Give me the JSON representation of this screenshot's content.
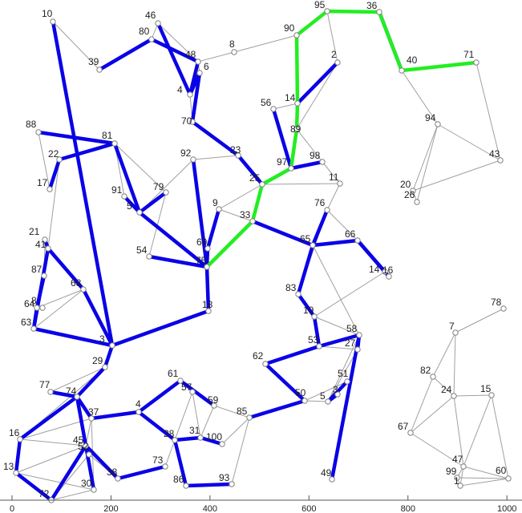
{
  "x_axis": {
    "ticks": [
      0,
      200,
      400,
      600,
      800,
      1000
    ]
  },
  "colors": {
    "thin_edge": "#a0a0a0",
    "blue_path": "#0a00e6",
    "green_path": "#22ee22",
    "node": "#808080"
  },
  "nodes": [
    {
      "id": 10,
      "label": "10"
    },
    {
      "id": 39,
      "label": "39"
    },
    {
      "id": 46,
      "label": "46"
    },
    {
      "id": 80,
      "label": "80"
    },
    {
      "id": 48,
      "label": "48"
    },
    {
      "id": 6,
      "label": "6"
    },
    {
      "id": 4,
      "label": "4"
    },
    {
      "id": 8,
      "label": "8"
    },
    {
      "id": 70,
      "label": "70"
    },
    {
      "id": 95,
      "label": "95"
    },
    {
      "id": 36,
      "label": "36"
    },
    {
      "id": 90,
      "label": "90"
    },
    {
      "id": 2,
      "label": "2"
    },
    {
      "id": 40,
      "label": "40"
    },
    {
      "id": 71,
      "label": "71"
    },
    {
      "id": 14,
      "label": "14"
    },
    {
      "id": 56,
      "label": "56"
    },
    {
      "id": 89,
      "label": "89"
    },
    {
      "id": 94,
      "label": "94"
    },
    {
      "id": 43,
      "label": "43"
    },
    {
      "id": 88,
      "label": "88"
    },
    {
      "id": 81,
      "label": "81"
    },
    {
      "id": 22,
      "label": "22"
    },
    {
      "id": 92,
      "label": "92"
    },
    {
      "id": 23,
      "label": "23"
    },
    {
      "id": 98,
      "label": "98"
    },
    {
      "id": 97,
      "label": "97"
    },
    {
      "id": 11,
      "label": "11"
    },
    {
      "id": 20,
      "label": "20"
    },
    {
      "id": 26,
      "label": "26"
    },
    {
      "id": 17,
      "label": "17"
    },
    {
      "id": 91,
      "label": "91"
    },
    {
      "id": 79,
      "label": "79"
    },
    {
      "id": 5,
      "label": "5"
    },
    {
      "id": 25,
      "label": "25"
    },
    {
      "id": 9,
      "label": "9"
    },
    {
      "id": 33,
      "label": "33"
    },
    {
      "id": 76,
      "label": "76"
    },
    {
      "id": 21,
      "label": "21"
    },
    {
      "id": 41,
      "label": "41"
    },
    {
      "id": 66,
      "label": "66"
    },
    {
      "id": 65,
      "label": "65"
    },
    {
      "id": 69,
      "label": "69"
    },
    {
      "id": 54,
      "label": "54"
    },
    {
      "id": 75,
      "label": "75"
    },
    {
      "id": 87,
      "label": "87"
    },
    {
      "id": 14.5,
      "label": "14"
    },
    {
      "id": 16.5,
      "label": "16"
    },
    {
      "id": 68,
      "label": "68"
    },
    {
      "id": 83,
      "label": "83"
    },
    {
      "id": 78,
      "label": "78"
    },
    {
      "id": 64,
      "label": "64"
    },
    {
      "id": 85.5,
      "label": "8"
    },
    {
      "id": 18,
      "label": "18"
    },
    {
      "id": 19,
      "label": "19"
    },
    {
      "id": 63,
      "label": "63"
    },
    {
      "id": 3,
      "label": "3"
    },
    {
      "id": 7,
      "label": "7"
    },
    {
      "id": 58,
      "label": "58"
    },
    {
      "id": 53,
      "label": "53"
    },
    {
      "id": 27,
      "label": "27"
    },
    {
      "id": 29,
      "label": "29"
    },
    {
      "id": 62,
      "label": "62"
    },
    {
      "id": 82,
      "label": "82"
    },
    {
      "id": 61,
      "label": "61"
    },
    {
      "id": 51,
      "label": "51"
    },
    {
      "id": 77,
      "label": "77"
    },
    {
      "id": 74,
      "label": "74"
    },
    {
      "id": 57,
      "label": "57"
    },
    {
      "id": 59,
      "label": "59"
    },
    {
      "id": 24,
      "label": "24"
    },
    {
      "id": 15,
      "label": "15"
    },
    {
      "id": 50,
      "label": "50"
    },
    {
      "id": 55,
      "label": "5"
    },
    {
      "id": 35,
      "label": "3"
    },
    {
      "id": 37,
      "label": "37"
    },
    {
      "id": 85,
      "label": "85"
    },
    {
      "id": 44,
      "label": "4"
    },
    {
      "id": 16,
      "label": "16"
    },
    {
      "id": 31,
      "label": "31"
    },
    {
      "id": 28,
      "label": "28"
    },
    {
      "id": 100,
      "label": "100"
    },
    {
      "id": 67,
      "label": "67"
    },
    {
      "id": 45,
      "label": "45"
    },
    {
      "id": 52,
      "label": "52"
    },
    {
      "id": 13,
      "label": "13"
    },
    {
      "id": 73,
      "label": "73"
    },
    {
      "id": 38,
      "label": "38"
    },
    {
      "id": 47,
      "label": "47"
    },
    {
      "id": 49,
      "label": "49"
    },
    {
      "id": 99,
      "label": "99"
    },
    {
      "id": 60,
      "label": "60"
    },
    {
      "id": 86,
      "label": "86"
    },
    {
      "id": 93,
      "label": "93"
    },
    {
      "id": 30,
      "label": "30"
    },
    {
      "id": 1,
      "label": "1"
    },
    {
      "id": 72,
      "label": "72"
    }
  ]
}
